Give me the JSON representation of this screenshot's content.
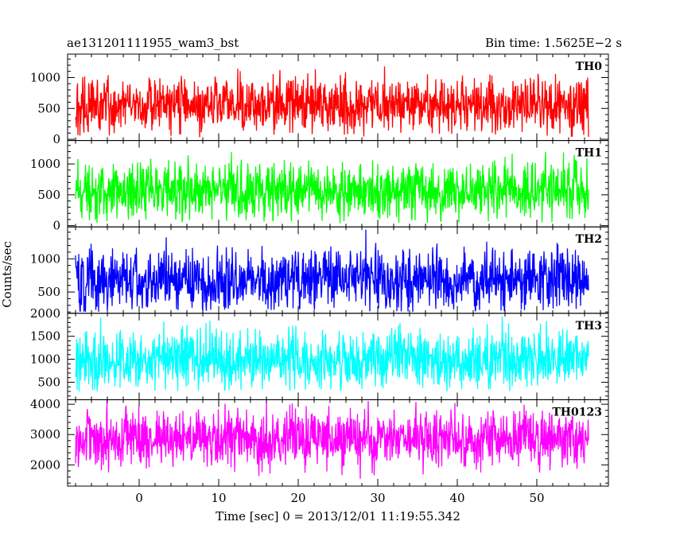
{
  "header": {
    "title": "ae131201111955_wam3_bst",
    "bin_time": "Bin time: 1.5625E−2 s"
  },
  "chart_data": {
    "type": "line",
    "title": "ae131201111955_wam3_bst",
    "xlabel": "Time [sec] 0 = 2013/12/01 11:19:55.342",
    "ylabel": "Counts/sec",
    "xlim": [
      -9,
      59
    ],
    "x_ticks": [
      "0",
      "10",
      "20",
      "30",
      "40",
      "50"
    ],
    "x_tick_values": [
      0,
      10,
      20,
      30,
      40,
      50
    ],
    "data_range": [
      -8,
      56.5
    ],
    "grid": false,
    "panels": [
      {
        "name": "TH0",
        "color": "#ff0000",
        "ylim": [
          -20,
          1380
        ],
        "yticks": [
          "0",
          "500",
          "1000"
        ],
        "ytick_values": [
          0,
          500,
          1000
        ],
        "base": 560,
        "spread": 230,
        "min": 30,
        "max": 1380
      },
      {
        "name": "TH1",
        "color": "#00ff00",
        "ylim": [
          -20,
          1380
        ],
        "yticks": [
          "0",
          "500",
          "1000"
        ],
        "ytick_values": [
          0,
          500,
          1000
        ],
        "base": 560,
        "spread": 230,
        "min": 40,
        "max": 1380
      },
      {
        "name": "TH2",
        "color": "#0000ff",
        "ylim": [
          180,
          1480
        ],
        "yticks": [
          "500",
          "1000"
        ],
        "ytick_values": [
          500,
          1000
        ],
        "base": 690,
        "spread": 240,
        "min": 200,
        "max": 1480
      },
      {
        "name": "TH3",
        "color": "#00ffff",
        "ylim": [
          120,
          2000
        ],
        "yticks": [
          "500",
          "1000",
          "1500",
          "2000"
        ],
        "ytick_values": [
          500,
          1000,
          1500,
          2000
        ],
        "base": 1000,
        "spread": 330,
        "min": 300,
        "max": 2000
      },
      {
        "name": "TH0123",
        "color": "#ff00ff",
        "ylim": [
          1300,
          4150
        ],
        "yticks": [
          "2000",
          "3000",
          "4000"
        ],
        "ytick_values": [
          2000,
          3000,
          4000
        ],
        "base": 2850,
        "spread": 480,
        "min": 1350,
        "max": 4150
      }
    ]
  }
}
